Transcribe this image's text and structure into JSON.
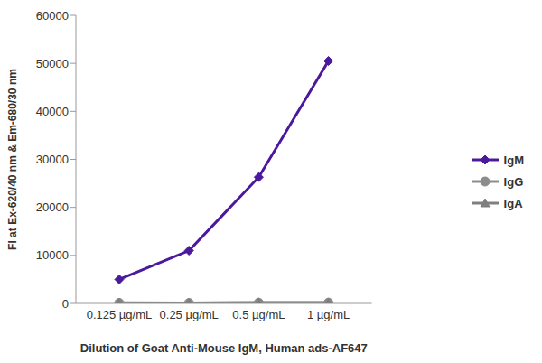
{
  "chart_data": {
    "type": "line",
    "x_label": "Dilution of Goat Anti-Mouse IgM, Human ads-AF647",
    "y_label": "FI at Ex-620/40 nm & Em-680/30 nm",
    "categories": [
      "0.125 µg/mL",
      "0.25 µg/mL",
      "0.5 µg/mL",
      "1 µg/mL"
    ],
    "series": [
      {
        "name": "IgM",
        "color": "#4b1a9c",
        "marker": "diamond",
        "values": [
          5000,
          11000,
          26300,
          50500
        ]
      },
      {
        "name": "IgG",
        "color": "#8c8c8c",
        "marker": "circle",
        "values": [
          100,
          80,
          150,
          150
        ]
      },
      {
        "name": "IgA",
        "color": "#7f7f7f",
        "marker": "triangle",
        "values": [
          120,
          100,
          200,
          200
        ]
      }
    ],
    "ylim": [
      0,
      60000
    ],
    "yticks": [
      0,
      10000,
      20000,
      30000,
      40000,
      50000,
      60000
    ],
    "grid": false,
    "legend": "right"
  }
}
